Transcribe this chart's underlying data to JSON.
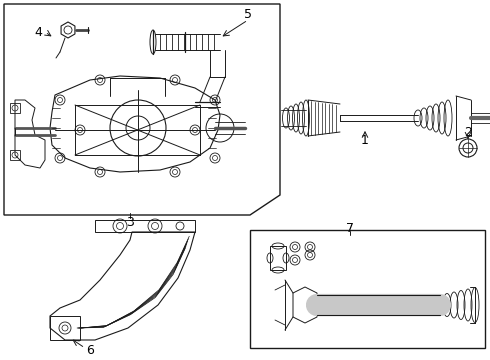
{
  "bg_color": "#ffffff",
  "line_color": "#1a1a1a",
  "label_color": "#000000",
  "fontsize_label": 9
}
